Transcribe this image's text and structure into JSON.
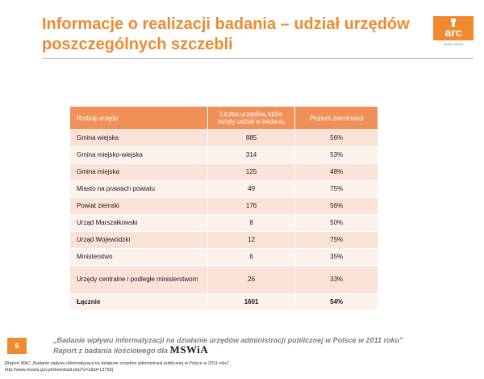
{
  "slide": {
    "title_line1": "Informacje o realizacji badania – udział urzędów",
    "title_line2": "poszczególnych szczebli",
    "accent_color": "#ef8a2f"
  },
  "logo": {
    "text": "arc",
    "subtitle": "rynek i opinia",
    "icon": "arc-logo-icon"
  },
  "table": {
    "headers": [
      "Rodzaj urzędu",
      "Liczba urzędów, które wzięły udział w badaniu",
      "Poziom zwrotności"
    ],
    "rows": [
      {
        "type": "Gmina wiejska",
        "count": "885",
        "rate": "56%"
      },
      {
        "type": "Gmina miejsko-wiejska",
        "count": "314",
        "rate": "53%"
      },
      {
        "type": "Gmina miejska",
        "count": "125",
        "rate": "48%"
      },
      {
        "type": "Miasto na prawach powiatu",
        "count": "49",
        "rate": "75%"
      },
      {
        "type": "Powiat ziemski",
        "count": "176",
        "rate": "56%"
      },
      {
        "type": "Urząd Marszałkowski",
        "count": "8",
        "rate": "50%"
      },
      {
        "type": "Urząd Wojewódzki",
        "count": "12",
        "rate": "75%"
      },
      {
        "type": "Ministerstwo",
        "count": "6",
        "rate": "35%"
      },
      {
        "type": "Urzędy centralne i podległe ministerstwom",
        "count": "26",
        "rate": "33%"
      }
    ],
    "total": {
      "type": "Łącznie",
      "count": "1601",
      "rate": "54%"
    },
    "header_color": "#f0915a",
    "row_odd_color": "#fbe2d7",
    "row_even_color": "#fdf1eb"
  },
  "footer": {
    "page_number": "6",
    "study_title": "„Badanie wpływu informatyzacji na działanie urzędów administracji publicznej w Polsce w 2011 roku”",
    "report_prefix": "Raport z badania ilościowego dla",
    "report_client": "MSWiA",
    "reference_line1": "[Raport MAC „Badanie wpływu informatyzacji na działanie urzędów administracji publicznej w Polsce w 2011 roku\"",
    "reference_line2": "http://www.mswia.gov.pl/download.php?s=1&id=13759]"
  }
}
